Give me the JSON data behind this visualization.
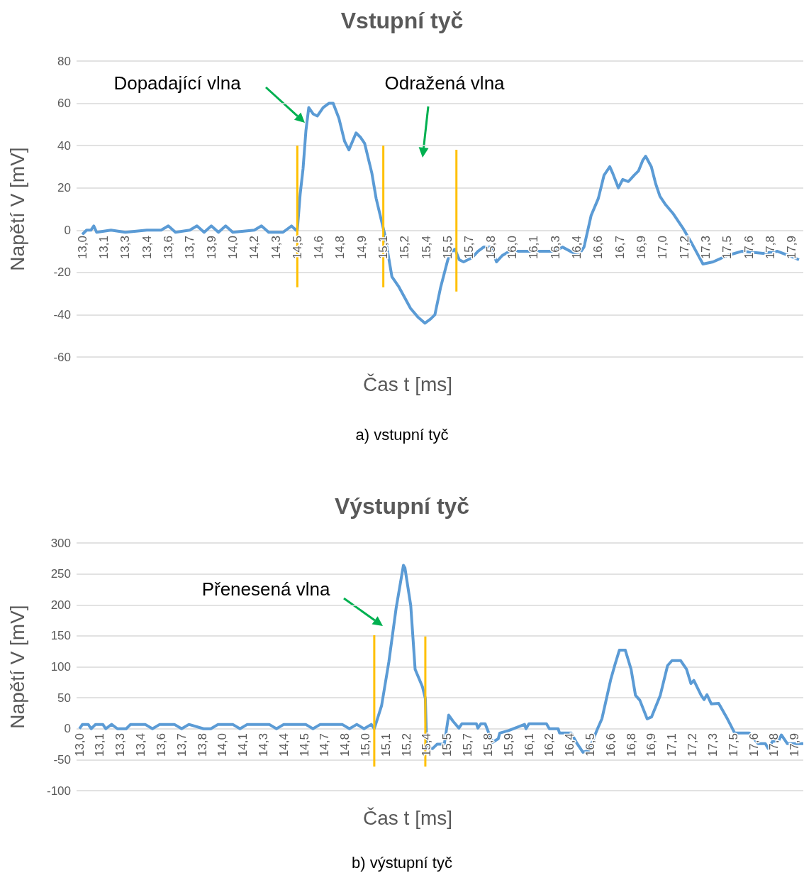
{
  "chart_data": [
    {
      "type": "line",
      "title": "Vstupní tyč",
      "xlabel": "Čas t [ms]",
      "ylabel": "Napětí V [mV]",
      "annotations": [
        "Dopadající vlna",
        "Odražená vlna",
        "a) vstupní tyč"
      ],
      "xlim": [
        12.96,
        18.03
      ],
      "ylim": [
        -60,
        80
      ],
      "yticks": [
        -60,
        -40,
        -20,
        0,
        20,
        40,
        60,
        80
      ],
      "xticks": [
        {
          "value": 13.0,
          "label": "13,0"
        },
        {
          "value": 13.15,
          "label": "13,1"
        },
        {
          "value": 13.3,
          "label": "13,3"
        },
        {
          "value": 13.45,
          "label": "13,4"
        },
        {
          "value": 13.6,
          "label": "13,6"
        },
        {
          "value": 13.75,
          "label": "13,7"
        },
        {
          "value": 13.9,
          "label": "13,9"
        },
        {
          "value": 14.05,
          "label": "14,0"
        },
        {
          "value": 14.2,
          "label": "14,2"
        },
        {
          "value": 14.35,
          "label": "14,3"
        },
        {
          "value": 14.5,
          "label": "14,5"
        },
        {
          "value": 14.65,
          "label": "14,6"
        },
        {
          "value": 14.8,
          "label": "14,8"
        },
        {
          "value": 14.95,
          "label": "14,9"
        },
        {
          "value": 15.1,
          "label": "15,1"
        },
        {
          "value": 15.25,
          "label": "15,2"
        },
        {
          "value": 15.4,
          "label": "15,4"
        },
        {
          "value": 15.55,
          "label": "15,5"
        },
        {
          "value": 15.7,
          "label": "15,7"
        },
        {
          "value": 15.85,
          "label": "15,8"
        },
        {
          "value": 16.0,
          "label": "16,0"
        },
        {
          "value": 16.15,
          "label": "16,1"
        },
        {
          "value": 16.3,
          "label": "16,3"
        },
        {
          "value": 16.45,
          "label": "16,4"
        },
        {
          "value": 16.6,
          "label": "16,6"
        },
        {
          "value": 16.75,
          "label": "16,7"
        },
        {
          "value": 16.9,
          "label": "16,9"
        },
        {
          "value": 17.05,
          "label": "17,0"
        },
        {
          "value": 17.2,
          "label": "17,2"
        },
        {
          "value": 17.35,
          "label": "17,3"
        },
        {
          "value": 17.5,
          "label": "17,5"
        },
        {
          "value": 17.65,
          "label": "17,6"
        },
        {
          "value": 17.8,
          "label": "17,8"
        },
        {
          "value": 17.95,
          "label": "17,9"
        }
      ],
      "grid": "y",
      "marker": "none",
      "line_style": "solid",
      "series": [
        {
          "color": "#5b9bd5",
          "x": [
            13.0,
            13.03,
            13.06,
            13.08,
            13.1,
            13.2,
            13.3,
            13.45,
            13.55,
            13.6,
            13.65,
            13.75,
            13.8,
            13.85,
            13.9,
            13.95,
            14.0,
            14.05,
            14.2,
            14.25,
            14.3,
            14.4,
            14.46,
            14.49,
            14.5,
            14.52,
            14.54,
            14.56,
            14.58,
            14.61,
            14.64,
            14.68,
            14.72,
            14.75,
            14.79,
            14.83,
            14.86,
            14.91,
            14.94,
            14.97,
            15.02,
            15.05,
            15.11,
            15.16,
            15.21,
            15.29,
            15.34,
            15.39,
            15.43,
            15.46,
            15.5,
            15.55,
            15.58,
            15.6,
            15.63,
            15.66,
            15.72,
            15.76,
            15.8,
            15.85,
            15.89,
            15.93,
            15.98,
            16.1,
            16.3,
            16.35,
            16.46,
            16.5,
            16.55,
            16.6,
            16.64,
            16.68,
            16.7,
            16.74,
            16.77,
            16.81,
            16.85,
            16.88,
            16.91,
            16.93,
            16.97,
            17.0,
            17.03,
            17.07,
            17.12,
            17.19,
            17.25,
            17.33,
            17.4,
            17.5,
            17.6,
            17.75,
            17.85,
            17.93,
            18.0
          ],
          "values": [
            -2,
            0,
            0,
            2,
            -1,
            0,
            -1,
            0,
            0,
            2,
            -1,
            0,
            2,
            -1,
            2,
            -1,
            2,
            -1,
            0,
            2,
            -1,
            -1,
            2,
            0,
            0,
            17,
            29,
            47,
            58,
            55,
            54,
            58,
            60,
            60,
            53,
            42,
            38,
            46,
            44,
            41,
            27,
            15,
            -2,
            -22,
            -27,
            -37,
            -41,
            -44,
            -42,
            -40,
            -27,
            -14,
            -10,
            -9,
            -14,
            -15,
            -13,
            -10,
            -8,
            -8,
            -15,
            -12,
            -10,
            -10,
            -10,
            -8,
            -12,
            -8,
            7,
            15,
            26,
            30,
            27,
            20,
            24,
            23,
            26,
            28,
            33,
            35,
            30,
            22,
            16,
            12,
            8,
            1,
            -6,
            -16,
            -15,
            -12,
            -10,
            -11,
            -10,
            -12,
            -14
          ]
        },
        {
          "color": "#ffc000",
          "x": [
            14.5,
            14.5
          ],
          "values": [
            40,
            -27
          ]
        },
        {
          "color": "#ffc000",
          "x": [
            15.1,
            15.1
          ],
          "values": [
            40,
            -27
          ]
        },
        {
          "color": "#ffc000",
          "x": [
            15.61,
            15.61
          ],
          "values": [
            38,
            -29
          ]
        }
      ]
    },
    {
      "type": "line",
      "title": "Výstupní tyč",
      "xlabel": "Čas t [ms]",
      "ylabel": "Napětí V [mV]",
      "annotations": [
        "Přenesená vlna",
        "b) výstupní tyč"
      ],
      "xlim": [
        12.98,
        17.96
      ],
      "ylim": [
        -100,
        300
      ],
      "yticks": [
        -100,
        -50,
        0,
        50,
        100,
        150,
        200,
        250,
        300
      ],
      "xticks": [
        {
          "value": 13.0,
          "label": "13,0"
        },
        {
          "value": 13.14,
          "label": "13,1"
        },
        {
          "value": 13.28,
          "label": "13,3"
        },
        {
          "value": 13.42,
          "label": "13,4"
        },
        {
          "value": 13.56,
          "label": "13,6"
        },
        {
          "value": 13.7,
          "label": "13,7"
        },
        {
          "value": 13.84,
          "label": "13,8"
        },
        {
          "value": 13.98,
          "label": "14,0"
        },
        {
          "value": 14.12,
          "label": "14,1"
        },
        {
          "value": 14.26,
          "label": "14,3"
        },
        {
          "value": 14.4,
          "label": "14,4"
        },
        {
          "value": 14.54,
          "label": "14,5"
        },
        {
          "value": 14.68,
          "label": "14,7"
        },
        {
          "value": 14.82,
          "label": "14,8"
        },
        {
          "value": 14.96,
          "label": "15,0"
        },
        {
          "value": 15.1,
          "label": "15,1"
        },
        {
          "value": 15.24,
          "label": "15,2"
        },
        {
          "value": 15.38,
          "label": "15,4"
        },
        {
          "value": 15.52,
          "label": "15,5"
        },
        {
          "value": 15.66,
          "label": "15,7"
        },
        {
          "value": 15.8,
          "label": "15,8"
        },
        {
          "value": 15.94,
          "label": "15,9"
        },
        {
          "value": 16.08,
          "label": "16,1"
        },
        {
          "value": 16.22,
          "label": "16,2"
        },
        {
          "value": 16.36,
          "label": "16,4"
        },
        {
          "value": 16.5,
          "label": "16,5"
        },
        {
          "value": 16.64,
          "label": "16,6"
        },
        {
          "value": 16.78,
          "label": "16,8"
        },
        {
          "value": 16.92,
          "label": "16,9"
        },
        {
          "value": 17.06,
          "label": "17,1"
        },
        {
          "value": 17.2,
          "label": "17,2"
        },
        {
          "value": 17.34,
          "label": "17,3"
        },
        {
          "value": 17.48,
          "label": "17,5"
        },
        {
          "value": 17.62,
          "label": "17,6"
        },
        {
          "value": 17.76,
          "label": "17,8"
        },
        {
          "value": 17.9,
          "label": "17,9"
        }
      ],
      "grid": "y",
      "marker": "none",
      "line_style": "solid",
      "series": [
        {
          "color": "#5b9bd5",
          "x": [
            13.0,
            13.02,
            13.06,
            13.08,
            13.11,
            13.16,
            13.18,
            13.22,
            13.26,
            13.32,
            13.35,
            13.45,
            13.5,
            13.55,
            13.65,
            13.7,
            13.75,
            13.85,
            13.9,
            13.95,
            14.05,
            14.1,
            14.15,
            14.3,
            14.35,
            14.4,
            14.55,
            14.6,
            14.65,
            14.8,
            14.85,
            14.9,
            14.95,
            15.0,
            15.02,
            15.07,
            15.12,
            15.17,
            15.22,
            15.23,
            15.27,
            15.3,
            15.35,
            15.37,
            15.38,
            15.42,
            15.45,
            15.5,
            15.53,
            15.56,
            15.6,
            15.62,
            15.72,
            15.73,
            15.75,
            15.78,
            15.83,
            15.87,
            15.88,
            15.94,
            16.05,
            16.06,
            16.08,
            16.2,
            16.22,
            16.28,
            16.29,
            16.37,
            16.41,
            16.45,
            16.49,
            16.55,
            16.58,
            16.6,
            16.64,
            16.67,
            16.7,
            16.74,
            16.78,
            16.81,
            16.84,
            16.89,
            16.92,
            16.98,
            17.03,
            17.06,
            17.12,
            17.16,
            17.19,
            17.21,
            17.26,
            17.28,
            17.3,
            17.33,
            17.38,
            17.44,
            17.49,
            17.59,
            17.65,
            17.7,
            17.72,
            17.75,
            17.79,
            17.81,
            17.85,
            17.96
          ],
          "values": [
            0,
            7,
            7,
            0,
            7,
            7,
            0,
            7,
            0,
            0,
            7,
            7,
            0,
            7,
            7,
            0,
            7,
            0,
            0,
            7,
            7,
            0,
            7,
            7,
            0,
            7,
            7,
            0,
            7,
            7,
            0,
            7,
            0,
            7,
            0,
            37,
            108,
            195,
            264,
            260,
            199,
            96,
            68,
            49,
            -30,
            -32,
            -25,
            -25,
            22,
            12,
            1,
            8,
            8,
            1,
            8,
            8,
            -22,
            -16,
            -7,
            -3,
            7,
            0,
            8,
            8,
            0,
            0,
            -7,
            -7,
            -24,
            -38,
            -35,
            0,
            16,
            37,
            79,
            104,
            127,
            127,
            96,
            54,
            46,
            16,
            19,
            54,
            102,
            110,
            110,
            96,
            73,
            78,
            54,
            47,
            55,
            40,
            41,
            16,
            -7,
            -7,
            -24,
            -24,
            -32,
            -20,
            -20,
            -10,
            -24,
            -24
          ]
        },
        {
          "color": "#ffc000",
          "x": [
            15.02,
            15.02
          ],
          "values": [
            151,
            -61
          ]
        },
        {
          "color": "#ffc000",
          "x": [
            15.37,
            15.37
          ],
          "values": [
            149,
            -61
          ]
        }
      ]
    }
  ]
}
